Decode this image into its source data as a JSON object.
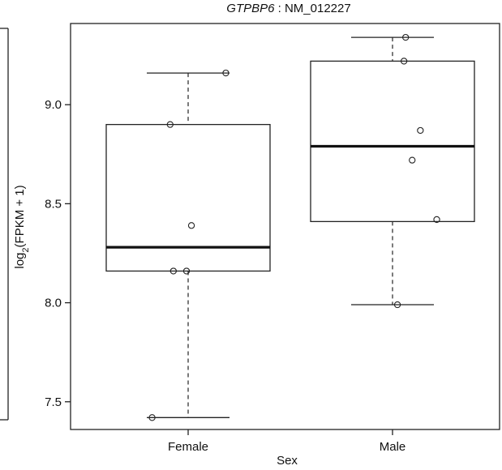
{
  "chart_data": {
    "type": "box",
    "title_gene": "GTPBP6",
    "title_rest": " : NM_012227",
    "xlabel": "Sex",
    "ylabel_main": "log",
    "ylabel_sub": "2",
    "ylabel_rest": "(FPKM + 1)",
    "categories": [
      "Female",
      "Male"
    ],
    "ylim": [
      7.36,
      9.41
    ],
    "yticks": [
      7.5,
      8.0,
      8.5,
      9.0
    ],
    "ytick_labels": [
      "7.5",
      "8.0",
      "8.5",
      "9.0"
    ],
    "series": [
      {
        "category": "Female",
        "whisker_low": 7.42,
        "q1": 8.16,
        "median": 8.28,
        "q3": 8.9,
        "whisker_high": 9.16,
        "points": [
          {
            "x_offset": -0.22,
            "y": 7.42
          },
          {
            "x_offset": -0.09,
            "y": 8.16
          },
          {
            "x_offset": -0.01,
            "y": 8.16
          },
          {
            "x_offset": 0.02,
            "y": 8.39
          },
          {
            "x_offset": -0.11,
            "y": 8.9
          },
          {
            "x_offset": 0.23,
            "y": 9.16
          }
        ]
      },
      {
        "category": "Male",
        "whisker_low": 7.99,
        "q1": 8.41,
        "median": 8.79,
        "q3": 9.22,
        "whisker_high": 9.34,
        "points": [
          {
            "x_offset": 0.03,
            "y": 7.99
          },
          {
            "x_offset": 0.27,
            "y": 8.42
          },
          {
            "x_offset": 0.12,
            "y": 8.72
          },
          {
            "x_offset": 0.17,
            "y": 8.87
          },
          {
            "x_offset": 0.07,
            "y": 9.22
          },
          {
            "x_offset": 0.08,
            "y": 9.34
          }
        ]
      }
    ]
  }
}
